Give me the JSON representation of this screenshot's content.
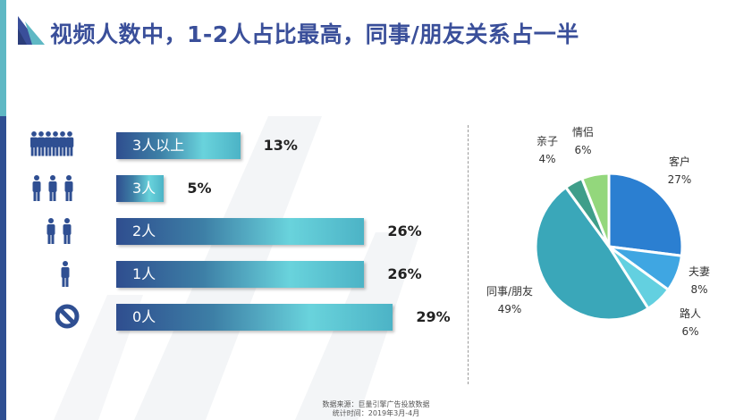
{
  "title": "视频人数中，1-2人占比最高，同事/朋友关系占一半",
  "colors": {
    "title": "#3a4f9a",
    "icon": "#2f4f92",
    "bar_start": "#2f4e8f",
    "bar_end": "#69d3dc"
  },
  "bar_chart": {
    "type": "bar",
    "orientation": "horizontal",
    "categories": [
      "3人以上",
      "3人",
      "2人",
      "1人",
      "0人"
    ],
    "values": [
      13,
      5,
      26,
      26,
      29
    ],
    "value_labels": [
      "13%",
      "5%",
      "26%",
      "26%",
      "29%"
    ],
    "icons": [
      "group-large-icon",
      "three-people-icon",
      "two-people-icon",
      "one-person-icon",
      "no-person-icon"
    ]
  },
  "chart_data": {
    "type": "pie",
    "slices": [
      {
        "label": "客户",
        "value": 27,
        "display": "27%",
        "color": "#2b7fd1"
      },
      {
        "label": "夫妻",
        "value": 8,
        "display": "8%",
        "color": "#3fa6e2"
      },
      {
        "label": "路人",
        "value": 6,
        "display": "6%",
        "color": "#63d0e0"
      },
      {
        "label": "同事/朋友",
        "value": 49,
        "display": "49%",
        "color": "#3aa7b9"
      },
      {
        "label": "亲子",
        "value": 4,
        "display": "4%",
        "color": "#3f9e8a"
      },
      {
        "label": "情侣",
        "value": 6,
        "display": "6%",
        "color": "#93d77c"
      }
    ],
    "start_angle_deg": 0
  },
  "footer": {
    "source": "数据来源：巨量引擎广告投放数据",
    "period": "统计时间：2019年3月-4月"
  }
}
